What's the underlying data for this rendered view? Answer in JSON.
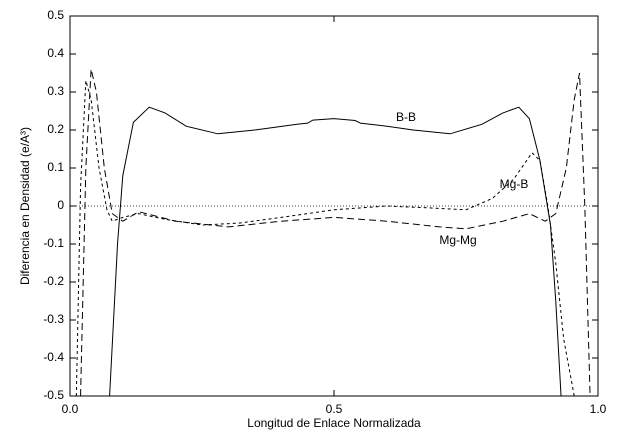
{
  "chart_data": {
    "type": "line",
    "xlabel": "Longitud de Enlace Normalizada",
    "ylabel": "Diferencia en Densidad (e/A³)",
    "xlim": [
      0,
      1
    ],
    "ylim": [
      -0.5,
      0.5
    ],
    "xticks": [
      {
        "value": 0,
        "label": "0.0"
      },
      0.5,
      {
        "value": 1,
        "label": "1.0"
      }
    ],
    "yticks": [
      -0.5,
      -0.4,
      -0.3,
      -0.2,
      -0.1,
      0,
      0.1,
      0.2,
      0.3,
      0.4,
      0.5
    ],
    "hline": 0,
    "series": [
      {
        "name": "B-B",
        "color": "#000000",
        "dash": "none",
        "x": [
          0.075,
          0.09,
          0.1,
          0.12,
          0.15,
          0.18,
          0.22,
          0.28,
          0.35,
          0.43,
          0.45,
          0.46,
          0.5,
          0.54,
          0.55,
          0.6,
          0.65,
          0.72,
          0.78,
          0.82,
          0.85,
          0.87,
          0.89,
          0.91,
          0.92,
          0.93
        ],
        "values": [
          -0.5,
          -0.1,
          0.08,
          0.22,
          0.26,
          0.245,
          0.21,
          0.19,
          0.2,
          0.215,
          0.218,
          0.226,
          0.23,
          0.225,
          0.218,
          0.21,
          0.2,
          0.19,
          0.215,
          0.245,
          0.26,
          0.23,
          0.12,
          -0.05,
          -0.25,
          -0.5
        ]
      },
      {
        "name": "Mg-B",
        "color": "#000000",
        "dash": "3 3",
        "x": [
          0.012,
          0.02,
          0.03,
          0.04,
          0.055,
          0.07,
          0.08,
          0.1,
          0.13,
          0.18,
          0.25,
          0.32,
          0.4,
          0.5,
          0.6,
          0.68,
          0.75,
          0.8,
          0.84,
          0.875,
          0.89,
          0.905,
          0.92,
          0.935,
          0.955
        ],
        "values": [
          -0.5,
          0.05,
          0.33,
          0.28,
          0.1,
          -0.01,
          -0.04,
          -0.03,
          -0.02,
          -0.035,
          -0.05,
          -0.045,
          -0.03,
          -0.01,
          0.0,
          -0.005,
          -0.01,
          0.02,
          0.07,
          0.14,
          0.12,
          0.0,
          -0.15,
          -0.35,
          -0.5
        ]
      },
      {
        "name": "Mg-Mg",
        "color": "#000000",
        "dash": "7 4",
        "x": [
          0.02,
          0.03,
          0.04,
          0.05,
          0.065,
          0.08,
          0.1,
          0.13,
          0.2,
          0.3,
          0.4,
          0.5,
          0.6,
          0.7,
          0.75,
          0.82,
          0.87,
          0.9,
          0.92,
          0.94,
          0.955,
          0.965,
          0.975,
          0.985
        ],
        "values": [
          -0.5,
          0.1,
          0.36,
          0.3,
          0.1,
          -0.02,
          -0.04,
          -0.015,
          -0.04,
          -0.055,
          -0.04,
          -0.03,
          -0.04,
          -0.055,
          -0.06,
          -0.04,
          -0.02,
          -0.04,
          -0.02,
          0.1,
          0.28,
          0.35,
          0.0,
          -0.5
        ]
      }
    ]
  }
}
